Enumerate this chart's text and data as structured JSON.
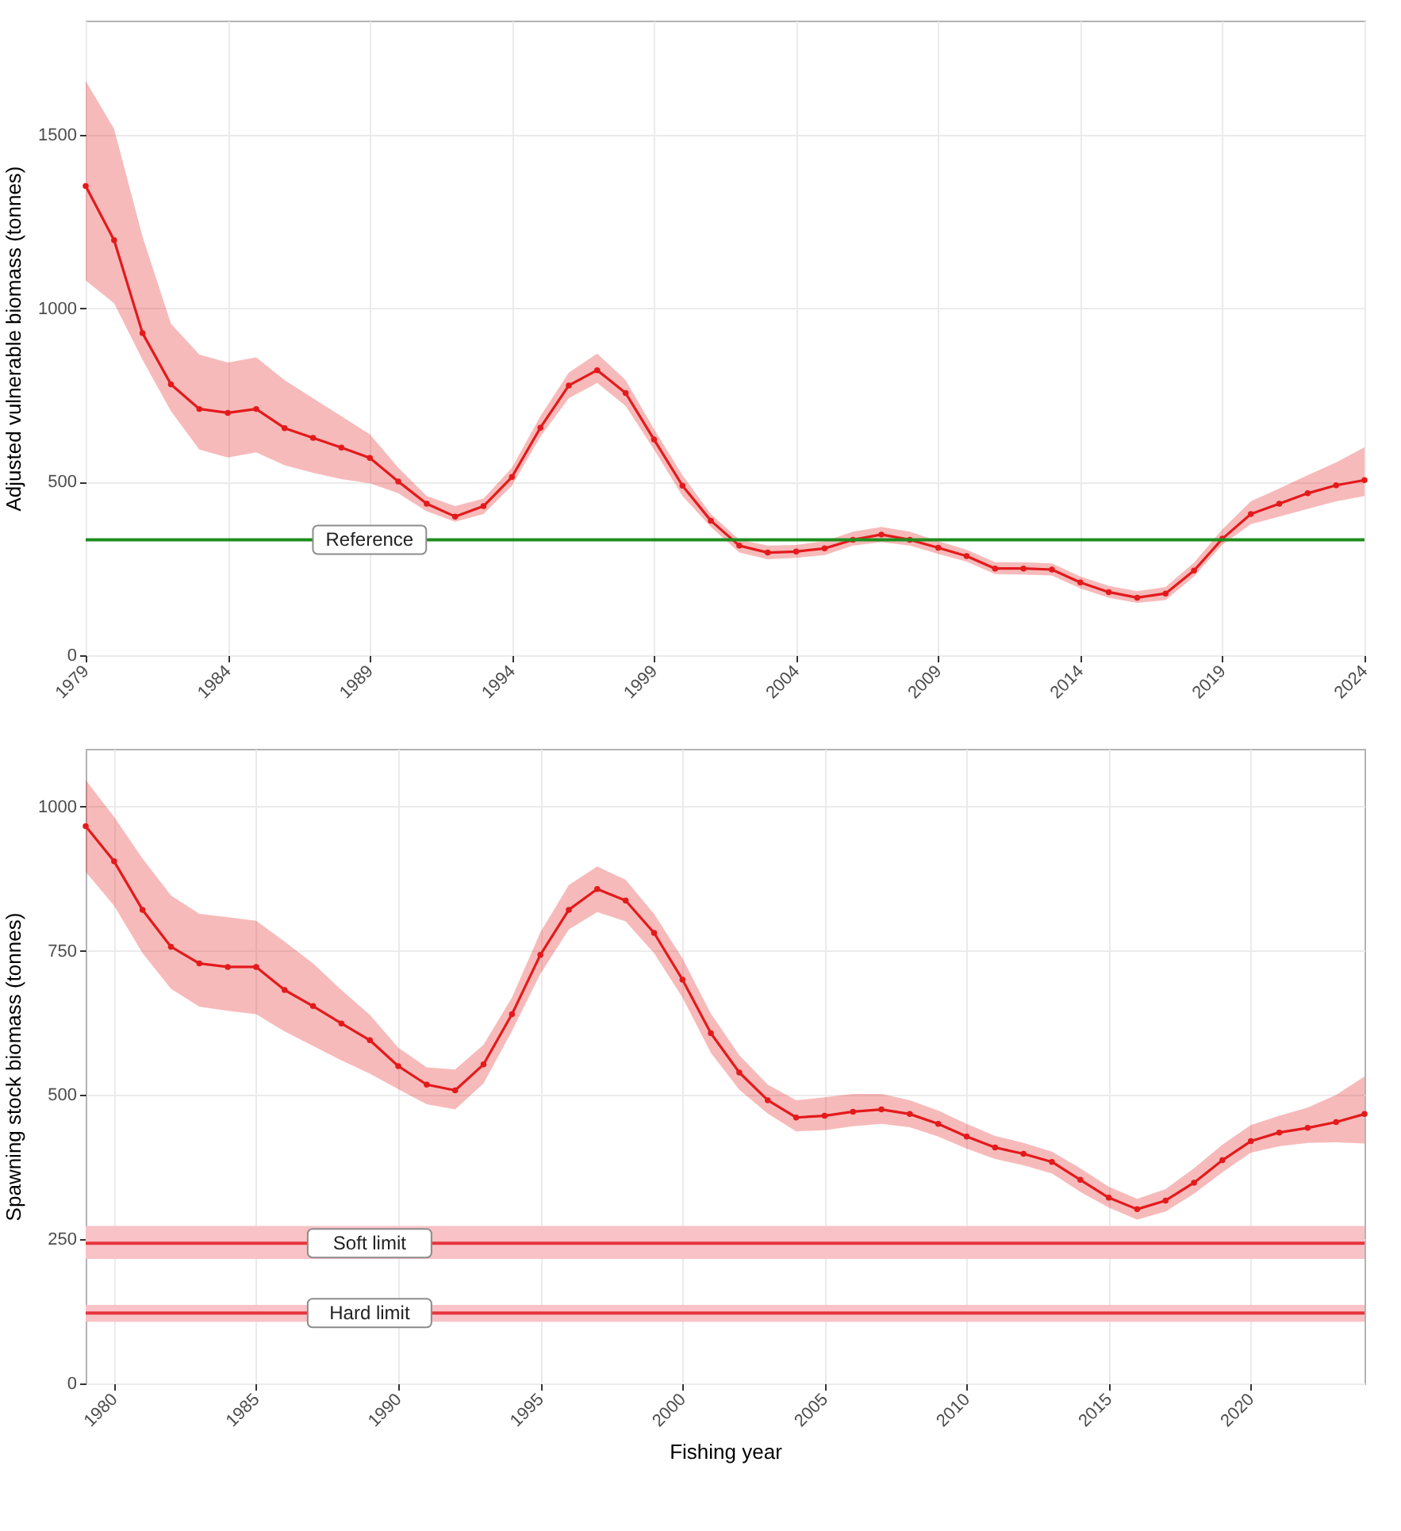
{
  "chart_data": [
    {
      "type": "line",
      "ylabel": "Adjusted vulnerable biomass (tonnes)",
      "x": [
        1979,
        1980,
        1981,
        1982,
        1983,
        1984,
        1985,
        1986,
        1987,
        1988,
        1989,
        1990,
        1991,
        1992,
        1993,
        1994,
        1995,
        1996,
        1997,
        1998,
        1999,
        2000,
        2001,
        2002,
        2003,
        2004,
        2005,
        2006,
        2007,
        2008,
        2009,
        2010,
        2011,
        2012,
        2013,
        2014,
        2015,
        2016,
        2017,
        2018,
        2019,
        2020,
        2021,
        2022,
        2023,
        2024
      ],
      "series": [
        {
          "color": "#e31a1c",
          "values": [
            1353,
            1197,
            929,
            781,
            710,
            699,
            710,
            655,
            627,
            599,
            569,
            501,
            437,
            400,
            430,
            514,
            656,
            778,
            822,
            756,
            622,
            489,
            388,
            316,
            296,
            299,
            308,
            333,
            348,
            333,
            310,
            286,
            250,
            250,
            247,
            210,
            182,
            166,
            178,
            244,
            336,
            407,
            437,
            467,
            490,
            505
          ],
          "lower": [
            1081,
            1015,
            852,
            704,
            593,
            570,
            585,
            548,
            526,
            508,
            496,
            467,
            415,
            385,
            407,
            489,
            630,
            741,
            785,
            719,
            593,
            459,
            370,
            296,
            277,
            281,
            289,
            316,
            326,
            316,
            292,
            270,
            234,
            233,
            230,
            193,
            166,
            151,
            159,
            227,
            319,
            378,
            400,
            422,
            444,
            459
          ],
          "upper": [
            1656,
            1518,
            1207,
            956,
            867,
            844,
            859,
            793,
            741,
            689,
            637,
            541,
            459,
            430,
            452,
            541,
            689,
            815,
            870,
            793,
            652,
            519,
            407,
            333,
            316,
            318,
            329,
            356,
            370,
            356,
            329,
            304,
            268,
            268,
            265,
            227,
            200,
            185,
            197,
            267,
            363,
            444,
            481,
            519,
            556,
            600
          ]
        }
      ],
      "xlim": [
        1979,
        2024
      ],
      "ylim": [
        0,
        1830
      ],
      "xticks": [
        1979,
        1984,
        1989,
        1994,
        1999,
        2004,
        2009,
        2014,
        2019,
        2024
      ],
      "yticks": [
        0,
        500,
        1000,
        1500
      ],
      "grid": true,
      "marker": "circle",
      "line_style": "solid",
      "ref_lines": [
        {
          "axis": "y",
          "value": 333,
          "label": "Reference",
          "color": "#1e8c1e"
        }
      ]
    },
    {
      "type": "line",
      "xlabel": "Fishing year",
      "ylabel": "Spawning stock biomass (tonnes)",
      "x": [
        1979,
        1980,
        1981,
        1982,
        1983,
        1984,
        1985,
        1986,
        1987,
        1988,
        1989,
        1990,
        1991,
        1992,
        1993,
        1994,
        1995,
        1996,
        1997,
        1998,
        1999,
        2000,
        2001,
        2002,
        2003,
        2004,
        2005,
        2006,
        2007,
        2008,
        2009,
        2010,
        2011,
        2012,
        2013,
        2014,
        2015,
        2016,
        2017,
        2018,
        2019,
        2020,
        2021,
        2022,
        2023,
        2024
      ],
      "series": [
        {
          "color": "#e31a1c",
          "values": [
            966,
            905,
            821,
            757,
            728,
            722,
            722,
            682,
            654,
            624,
            595,
            550,
            518,
            508,
            553,
            640,
            743,
            821,
            857,
            837,
            781,
            700,
            607,
            539,
            491,
            461,
            464,
            471,
            475,
            467,
            450,
            428,
            409,
            398,
            384,
            353,
            322,
            302,
            317,
            348,
            387,
            420,
            435,
            443,
            453,
            467
          ],
          "lower": [
            887,
            828,
            746,
            684,
            653,
            646,
            640,
            610,
            585,
            560,
            537,
            510,
            484,
            475,
            520,
            611,
            710,
            787,
            817,
            801,
            746,
            669,
            573,
            509,
            468,
            437,
            439,
            446,
            450,
            444,
            428,
            407,
            389,
            378,
            364,
            332,
            305,
            284,
            298,
            329,
            366,
            400,
            411,
            417,
            418,
            416
          ],
          "upper": [
            1046,
            982,
            910,
            846,
            814,
            808,
            802,
            766,
            728,
            682,
            639,
            582,
            548,
            544,
            587,
            669,
            782,
            864,
            896,
            873,
            814,
            737,
            641,
            569,
            518,
            491,
            496,
            502,
            502,
            491,
            473,
            450,
            429,
            417,
            402,
            373,
            341,
            320,
            337,
            373,
            414,
            448,
            464,
            478,
            500,
            532
          ]
        }
      ],
      "xlim": [
        1979,
        2024
      ],
      "ylim": [
        0,
        1100
      ],
      "xticks": [
        1980,
        1985,
        1990,
        1995,
        2000,
        2005,
        2010,
        2015,
        2020
      ],
      "yticks": [
        0,
        250,
        500,
        750,
        1000
      ],
      "grid": true,
      "marker": "circle",
      "line_style": "solid",
      "ref_lines": [
        {
          "axis": "y",
          "value": 243,
          "label": "Soft limit",
          "color": "#e8343c"
        },
        {
          "axis": "y",
          "value": 122,
          "label": "Hard limit",
          "color": "#e8343c"
        }
      ],
      "bands": [
        {
          "axis": "y",
          "from": 216,
          "to": 273,
          "color": "#f8c2c6"
        },
        {
          "axis": "y",
          "from": 107,
          "to": 136,
          "color": "#f8c2c6"
        }
      ]
    }
  ]
}
